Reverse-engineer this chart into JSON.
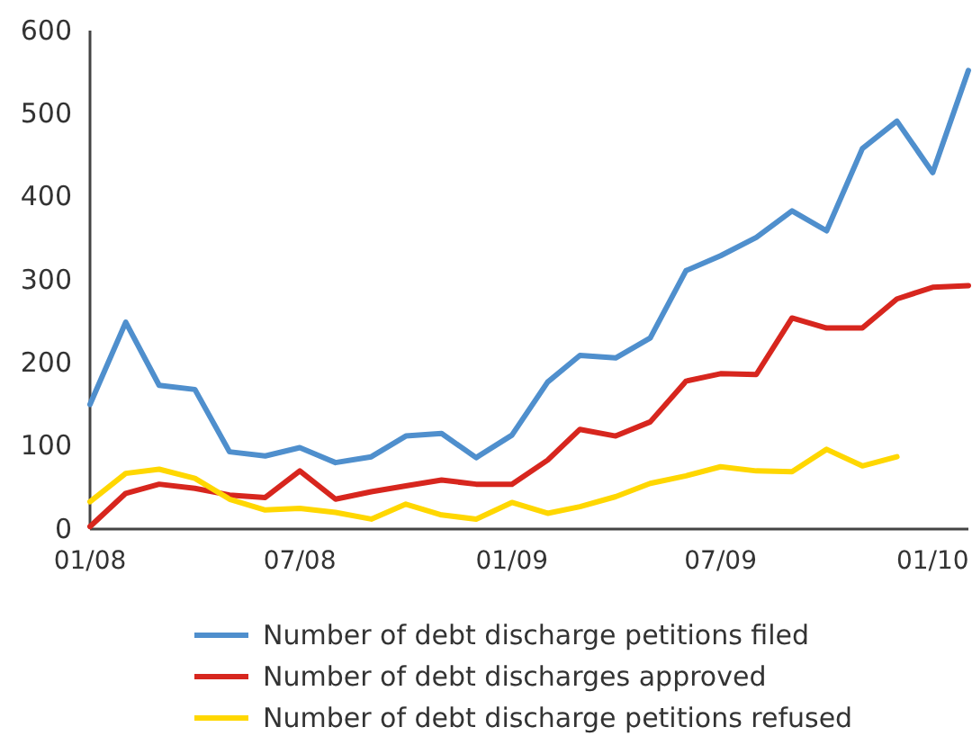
{
  "chart_data": {
    "type": "line",
    "x": [
      "2008-01",
      "2008-02",
      "2008-03",
      "2008-04",
      "2008-05",
      "2008-06",
      "2008-07",
      "2008-08",
      "2008-09",
      "2008-10",
      "2008-11",
      "2008-12",
      "2009-01",
      "2009-02",
      "2009-03",
      "2009-04",
      "2009-05",
      "2009-06",
      "2009-07",
      "2009-08",
      "2009-09",
      "2009-10",
      "2009-11",
      "2009-12",
      "2010-01",
      "2010-02"
    ],
    "series": [
      {
        "name": "Number of debt discharge petitions filed",
        "color": "#4f8fcd",
        "values": [
          150,
          249,
          173,
          168,
          93,
          88,
          98,
          80,
          87,
          112,
          115,
          86,
          113,
          177,
          209,
          206,
          230,
          311,
          329,
          351,
          383,
          359,
          458,
          491,
          429,
          552
        ]
      },
      {
        "name": "Number of debt discharges approved",
        "color": "#d7261e",
        "values": [
          3,
          43,
          54,
          49,
          41,
          38,
          70,
          36,
          45,
          52,
          59,
          54,
          54,
          83,
          120,
          112,
          129,
          178,
          187,
          186,
          254,
          242,
          242,
          277,
          291,
          293
        ]
      },
      {
        "name": "Number of debt discharge petitions refused",
        "color": "#ffd700",
        "values": [
          33,
          67,
          72,
          61,
          36,
          23,
          25,
          20,
          12,
          30,
          17,
          12,
          32,
          19,
          27,
          39,
          55,
          64,
          75,
          70,
          69,
          96,
          76,
          87,
          null,
          null
        ]
      }
    ],
    "xlim": [
      "2008-01",
      "2010-02"
    ],
    "xticks": [
      {
        "value": "2008-01",
        "label": "01/08"
      },
      {
        "value": "2008-07",
        "label": "07/08"
      },
      {
        "value": "2009-01",
        "label": "01/09"
      },
      {
        "value": "2009-07",
        "label": "07/09"
      },
      {
        "value": "2010-01",
        "label": "01/10"
      }
    ],
    "ylim": [
      0,
      600
    ],
    "yticks": [
      0,
      100,
      200,
      300,
      400,
      500,
      600
    ],
    "legend": "bottom",
    "marker": "none",
    "line_style": "solid",
    "grid": false
  }
}
